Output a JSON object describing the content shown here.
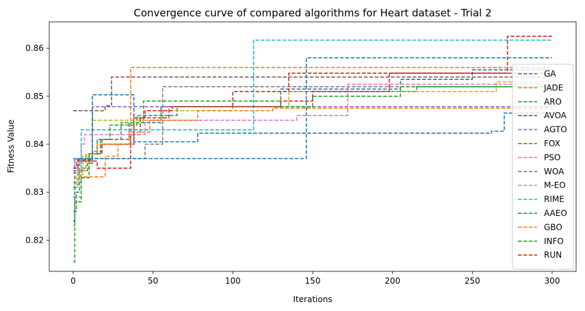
{
  "chart_data": {
    "type": "line",
    "title": "Convergence curve of compared algorithms for Heart dataset - Trial 2",
    "xlabel": "Iterations",
    "ylabel": "Fitness Value",
    "xlim": [
      -15,
      315
    ],
    "ylim": [
      0.8135,
      0.8655
    ],
    "x_ticks": [
      0,
      50,
      100,
      150,
      200,
      250,
      300
    ],
    "x_tick_labels": [
      "0",
      "50",
      "100",
      "150",
      "200",
      "250",
      "300"
    ],
    "y_ticks": [
      0.82,
      0.83,
      0.84,
      0.85,
      0.86
    ],
    "y_tick_labels": [
      "0.82",
      "0.83",
      "0.84",
      "0.85",
      "0.86"
    ],
    "grid": false,
    "legend_position": "right",
    "line_style": "dashed",
    "series": [
      {
        "name": "GA",
        "color": "#1f77b4",
        "steps": [
          [
            0,
            0.835
          ],
          [
            3,
            0.837
          ],
          [
            10,
            0.838
          ],
          [
            15,
            0.841
          ],
          [
            35,
            0.8445
          ],
          [
            55,
            0.8478
          ],
          [
            130,
            0.8515
          ],
          [
            205,
            0.8535
          ],
          [
            250,
            0.8555
          ],
          [
            300,
            0.8555
          ]
        ]
      },
      {
        "name": "JADE",
        "color": "#ff7f0e",
        "steps": [
          [
            0,
            0.823
          ],
          [
            1,
            0.832
          ],
          [
            5,
            0.8332
          ],
          [
            20,
            0.8375
          ],
          [
            28,
            0.84
          ],
          [
            36,
            0.856
          ],
          [
            300,
            0.856
          ]
        ]
      },
      {
        "name": "ARO",
        "color": "#2ca02c",
        "steps": [
          [
            0,
            0.826
          ],
          [
            2,
            0.83
          ],
          [
            4,
            0.8345
          ],
          [
            9,
            0.836
          ],
          [
            12,
            0.8385
          ],
          [
            18,
            0.841
          ],
          [
            30,
            0.8445
          ],
          [
            44,
            0.849
          ],
          [
            90,
            0.849
          ],
          [
            130,
            0.851
          ],
          [
            215,
            0.852
          ],
          [
            300,
            0.852
          ]
        ]
      },
      {
        "name": "AVOA",
        "color": "#d62728",
        "steps": [
          [
            0,
            0.835
          ],
          [
            2,
            0.8365
          ],
          [
            10,
            0.838
          ],
          [
            18,
            0.84
          ],
          [
            36,
            0.842
          ],
          [
            42,
            0.8455
          ],
          [
            60,
            0.8478
          ],
          [
            100,
            0.851
          ],
          [
            135,
            0.8548
          ],
          [
            300,
            0.8548
          ]
        ]
      },
      {
        "name": "AGTO",
        "color": "#9467bd",
        "steps": [
          [
            0,
            0.8345
          ],
          [
            4,
            0.8365
          ],
          [
            12,
            0.8478
          ],
          [
            300,
            0.8478
          ]
        ]
      },
      {
        "name": "FOX",
        "color": "#8c564b",
        "steps": [
          [
            0,
            0.847
          ],
          [
            20,
            0.848
          ],
          [
            24,
            0.854
          ],
          [
            300,
            0.854
          ]
        ]
      },
      {
        "name": "PSO",
        "color": "#e377c2",
        "steps": [
          [
            0,
            0.834
          ],
          [
            3,
            0.836
          ],
          [
            5,
            0.84
          ],
          [
            7,
            0.842
          ],
          [
            45,
            0.845
          ],
          [
            140,
            0.846
          ],
          [
            172,
            0.8525
          ],
          [
            300,
            0.8525
          ]
        ]
      },
      {
        "name": "WOA",
        "color": "#7f7f7f",
        "steps": [
          [
            0,
            0.829
          ],
          [
            5,
            0.835
          ],
          [
            10,
            0.837
          ],
          [
            45,
            0.84
          ],
          [
            56,
            0.852
          ],
          [
            300,
            0.852
          ]
        ]
      },
      {
        "name": "M-EO",
        "color": "#bcbd22",
        "steps": [
          [
            0,
            0.831
          ],
          [
            2,
            0.8335
          ],
          [
            6,
            0.8375
          ],
          [
            12,
            0.845
          ],
          [
            55,
            0.847
          ],
          [
            100,
            0.8478
          ],
          [
            135,
            0.851
          ],
          [
            265,
            0.853
          ],
          [
            300,
            0.853
          ]
        ]
      },
      {
        "name": "RIME",
        "color": "#17becf",
        "steps": [
          [
            0,
            0.831
          ],
          [
            3,
            0.835
          ],
          [
            5,
            0.843
          ],
          [
            10,
            0.843
          ],
          [
            57,
            0.843
          ],
          [
            113,
            0.8617
          ],
          [
            300,
            0.8617
          ]
        ]
      },
      {
        "name": "AAEO",
        "color": "#1f77b4",
        "steps": [
          [
            0,
            0.824
          ],
          [
            1,
            0.8368
          ],
          [
            12,
            0.8503
          ],
          [
            38,
            0.8405
          ],
          [
            78,
            0.8423
          ],
          [
            262,
            0.8427
          ],
          [
            270,
            0.8465
          ],
          [
            300,
            0.8465
          ]
        ]
      },
      {
        "name": "GBO",
        "color": "#ff7f0e",
        "steps": [
          [
            0,
            0.832
          ],
          [
            3,
            0.8345
          ],
          [
            8,
            0.838
          ],
          [
            15,
            0.84
          ],
          [
            35,
            0.8425
          ],
          [
            48,
            0.845
          ],
          [
            78,
            0.847
          ],
          [
            125,
            0.8475
          ],
          [
            300,
            0.8475
          ]
        ]
      },
      {
        "name": "INFO",
        "color": "#2ca02c",
        "steps": [
          [
            0,
            0.8155
          ],
          [
            1,
            0.828
          ],
          [
            5,
            0.833
          ],
          [
            10,
            0.838
          ],
          [
            17,
            0.841
          ],
          [
            23,
            0.844
          ],
          [
            40,
            0.846
          ],
          [
            65,
            0.8478
          ],
          [
            150,
            0.85
          ],
          [
            205,
            0.852
          ],
          [
            300,
            0.852
          ]
        ]
      },
      {
        "name": "RUN",
        "color": "#d62728",
        "steps": [
          [
            0,
            0.835
          ],
          [
            3,
            0.8365
          ],
          [
            15,
            0.835
          ],
          [
            36,
            0.84
          ],
          [
            38,
            0.8455
          ],
          [
            45,
            0.847
          ],
          [
            62,
            0.8478
          ],
          [
            130,
            0.849
          ],
          [
            150,
            0.851
          ],
          [
            198,
            0.8548
          ],
          [
            272,
            0.8625
          ],
          [
            300,
            0.8625
          ]
        ]
      },
      {
        "name": "",
        "color": "#1f77b4",
        "steps": [
          [
            0,
            0.837
          ],
          [
            145,
            0.837
          ],
          [
            146,
            0.858
          ],
          [
            300,
            0.858
          ]
        ]
      }
    ]
  }
}
